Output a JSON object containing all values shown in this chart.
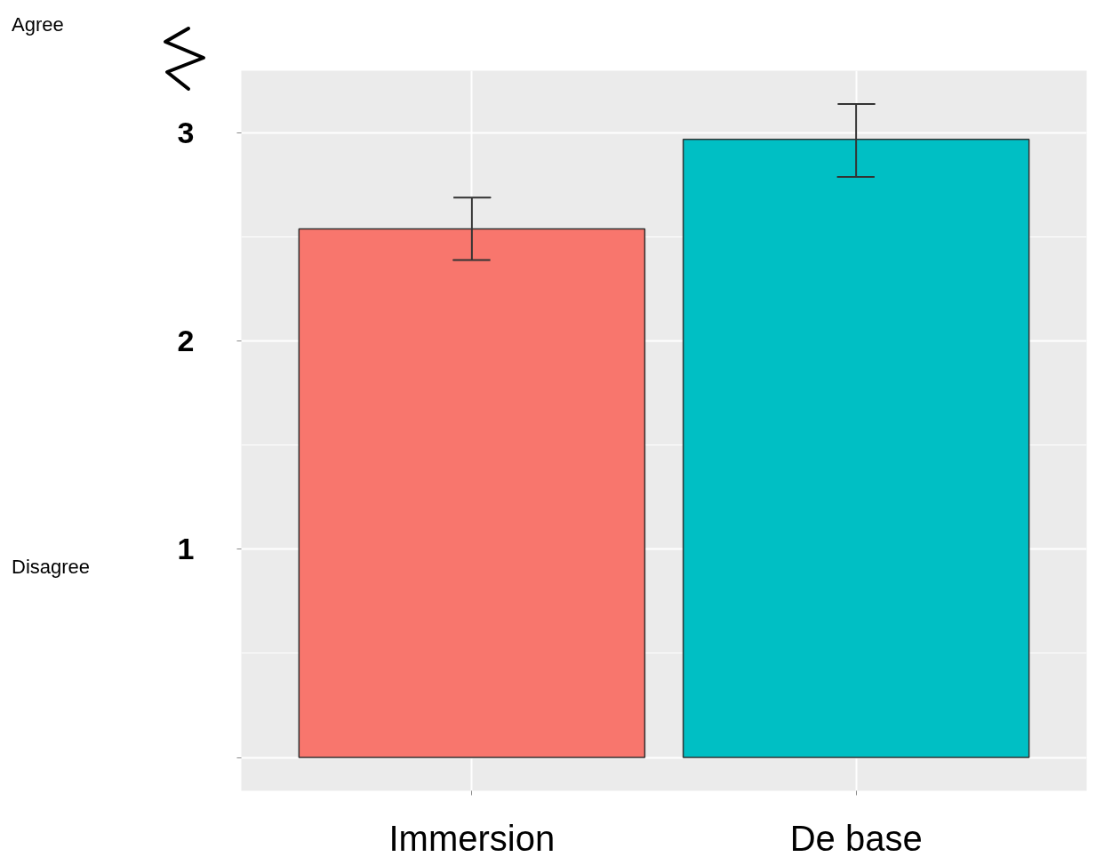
{
  "chart_data": {
    "type": "bar",
    "categories": [
      "Immersion",
      "De base"
    ],
    "values": [
      2.54,
      2.97
    ],
    "colors": [
      "#f8766d",
      "#00bfc4"
    ],
    "errors": [
      [
        2.39,
        2.69
      ],
      [
        2.79,
        3.14
      ]
    ],
    "ylim": [
      -0.16,
      3.3
    ],
    "yticks": [
      {
        "value": 0,
        "label": null
      },
      1,
      2,
      3
    ],
    "grid": true,
    "annotations": [
      "Agree",
      "Disagree"
    ]
  }
}
